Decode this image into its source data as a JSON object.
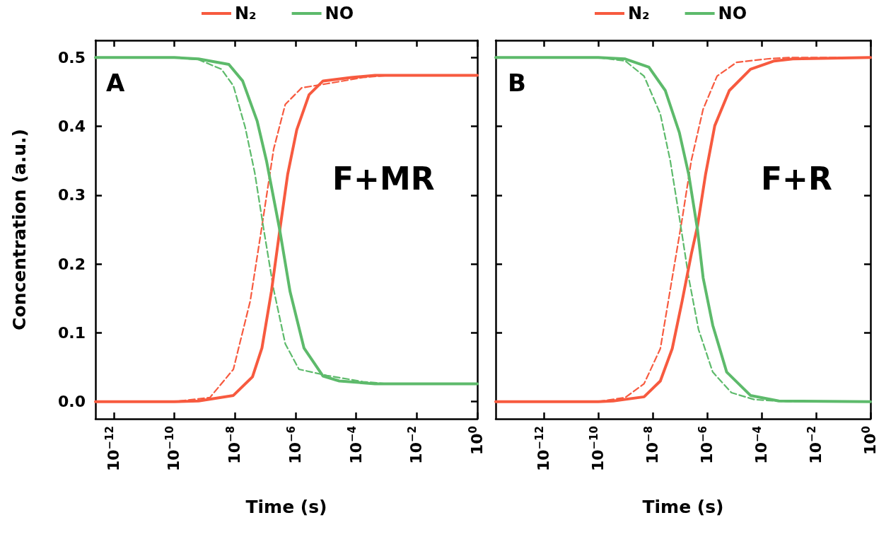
{
  "chart_data": [
    {
      "type": "line",
      "xlabel": "Time (s)",
      "ylabel": "Concentration (a.u.)",
      "annotations": [
        "A",
        "F+MR"
      ],
      "log": "x",
      "grid": false,
      "legend": "top",
      "marker": "none",
      "xlim": [
        2.5e-13,
        1
      ],
      "ylim": [
        -0.025,
        0.525
      ],
      "xticks": [
        {
          "value": 1e-12,
          "label": "10$^{−12}$"
        },
        {
          "value": 1e-10,
          "label": "10$^{−10}$"
        },
        {
          "value": 1e-08,
          "label": "10$^{−8}$"
        },
        {
          "value": 1e-06,
          "label": "10$^{−6}$"
        },
        {
          "value": 0.0001,
          "label": "10$^{−4}$"
        },
        {
          "value": 0.01,
          "label": "10$^{−2}$"
        },
        {
          "value": 1,
          "label": "10$^{0}$"
        }
      ],
      "yticks": [
        {
          "value": 0,
          "label": "0.0"
        },
        0.1,
        0.2,
        0.3,
        0.4,
        0.5
      ],
      "series": [
        {
          "name": "N₂",
          "color": "#f75a3f",
          "x": [
            2.5e-13,
            1e-10,
            6.3e-10,
            8.9e-09,
            3.8e-08,
            7.8e-08,
            1.6e-07,
            3e-07,
            5.5e-07,
            1.1e-06,
            2.8e-06,
            8.1e-06,
            6.9e-05,
            0.00042,
            1
          ],
          "values": [
            0,
            0,
            0.001,
            0.009,
            0.036,
            0.078,
            0.16,
            0.248,
            0.33,
            0.395,
            0.446,
            0.466,
            0.471,
            0.474,
            0.474
          ]
        },
        {
          "name": "NO",
          "color": "#5dba6b",
          "x": [
            2.5e-13,
            1e-10,
            6.3e-10,
            6.3e-09,
            1.8e-08,
            5.4e-08,
            1.1e-07,
            3e-07,
            6.6e-07,
            1.9e-06,
            8.1e-06,
            2.8e-05,
            0.00042,
            1
          ],
          "values": [
            0.5,
            0.5,
            0.498,
            0.49,
            0.466,
            0.408,
            0.35,
            0.25,
            0.16,
            0.078,
            0.037,
            0.03,
            0.026,
            0.026
          ]
        },
        {
          "color": "#f75a3f",
          "line_style": "dashed",
          "x": [
            2.5e-13,
            1e-10,
            1.5e-09,
            8.9e-09,
            3.2e-08,
            7.8e-08,
            1.9e-07,
            4.6e-07,
            1.6e-06,
            1.1e-05,
            0.00017,
            0.001,
            1
          ],
          "values": [
            0,
            0,
            0.006,
            0.047,
            0.146,
            0.255,
            0.367,
            0.432,
            0.456,
            0.462,
            0.471,
            0.474,
            0.474
          ]
        },
        {
          "color": "#5dba6b",
          "line_style": "dashed",
          "x": [
            2.5e-13,
            1e-10,
            6.3e-10,
            3.6e-09,
            8.9e-09,
            2.2e-08,
            4.5e-08,
            9.1e-08,
            1.9e-07,
            4.6e-07,
            1.3e-06,
            1.1e-05,
            0.00017,
            0.001,
            1
          ],
          "values": [
            0.5,
            0.5,
            0.497,
            0.483,
            0.459,
            0.398,
            0.333,
            0.248,
            0.163,
            0.084,
            0.047,
            0.038,
            0.029,
            0.026,
            0.026
          ]
        }
      ]
    },
    {
      "type": "line",
      "xlabel": "Time (s)",
      "annotations": [
        "B",
        "F+R"
      ],
      "log": "x",
      "grid": false,
      "legend": "top",
      "marker": "none",
      "tick_labels": "x",
      "xlim": [
        1.7e-14,
        1
      ],
      "ylim": [
        -0.025,
        0.525
      ],
      "xticks": [
        {
          "value": 1e-12,
          "label": "10$^{−12}$"
        },
        {
          "value": 1e-10,
          "label": "10$^{−10}$"
        },
        {
          "value": 1e-08,
          "label": "10$^{−8}$"
        },
        {
          "value": 1e-06,
          "label": "10$^{−6}$"
        },
        {
          "value": 0.0001,
          "label": "10$^{−4}$"
        },
        {
          "value": 0.01,
          "label": "10$^{−2}$"
        },
        {
          "value": 1,
          "label": "10$^{0}$"
        }
      ],
      "yticks": [
        0,
        0.1,
        0.2,
        0.3,
        0.4,
        0.5
      ],
      "series": [
        {
          "name": "N₂",
          "color": "#f75a3f",
          "x": [
            1.7e-14,
            1e-10,
            3.5e-10,
            4.8e-09,
            1.9e-08,
            5.2e-08,
            1.2e-07,
            2.6e-07,
            4.4e-07,
            8.7e-07,
            1.9e-06,
            6.5e-06,
            3.9e-05,
            0.00029,
            0.0014,
            1
          ],
          "values": [
            0,
            0,
            0.001,
            0.007,
            0.03,
            0.077,
            0.146,
            0.214,
            0.255,
            0.33,
            0.401,
            0.452,
            0.483,
            0.495,
            0.498,
            0.5
          ]
        },
        {
          "name": "NO",
          "color": "#5dba6b",
          "x": [
            1.7e-14,
            1e-10,
            9.8e-10,
            7.2e-09,
            2.9e-08,
            9.5e-08,
            2.1e-07,
            4.4e-07,
            7.1e-07,
            1.6e-06,
            5.2e-06,
            3.9e-05,
            0.00043,
            1
          ],
          "values": [
            0.5,
            0.5,
            0.498,
            0.486,
            0.452,
            0.391,
            0.33,
            0.25,
            0.18,
            0.111,
            0.043,
            0.009,
            0.001,
            0
          ]
        },
        {
          "color": "#f75a3f",
          "line_style": "dashed",
          "x": [
            1.7e-14,
            1e-10,
            9.8e-10,
            4.8e-09,
            1.9e-08,
            5.2e-08,
            1.2e-07,
            2.6e-07,
            7.1e-07,
            2.3e-06,
            1.2e-05,
            0.00016,
            0.001,
            1
          ],
          "values": [
            0,
            0,
            0.006,
            0.026,
            0.077,
            0.18,
            0.265,
            0.35,
            0.425,
            0.473,
            0.493,
            0.498,
            0.5,
            0.5
          ]
        },
        {
          "color": "#5dba6b",
          "line_style": "dashed",
          "x": [
            1.7e-14,
            1e-10,
            9.8e-10,
            4.8e-09,
            1.9e-08,
            4.4e-08,
            9.5e-08,
            2.1e-07,
            4.8e-07,
            1.6e-06,
            7.8e-06,
            5.4e-05,
            0.001,
            1
          ],
          "values": [
            0.5,
            0.5,
            0.495,
            0.473,
            0.418,
            0.35,
            0.268,
            0.18,
            0.105,
            0.043,
            0.013,
            0.003,
            0,
            0
          ]
        }
      ]
    }
  ]
}
